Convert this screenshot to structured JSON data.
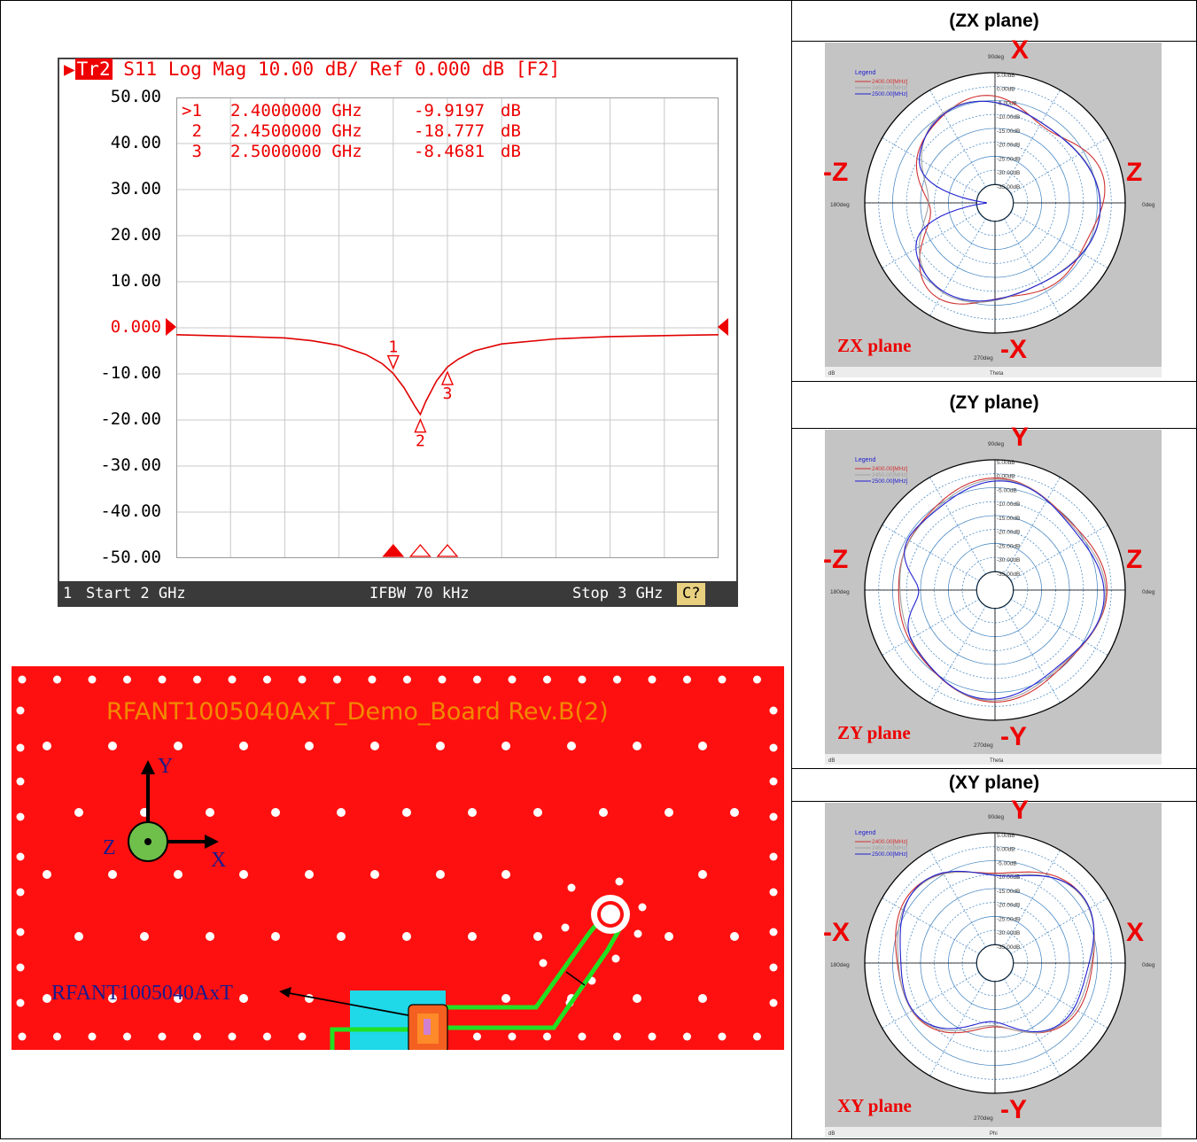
{
  "vna": {
    "trace_tag": "Tr2",
    "header_rest": " S11 Log Mag 10.00 dB/ Ref 0.000 dB [F2]",
    "footer": {
      "channel": "1",
      "start": "Start 2 GHz",
      "ifbw": "IFBW 70 kHz",
      "stop": "Stop 3 GHz",
      "button": "C?"
    },
    "markers": [
      {
        "id": ">1",
        "freq": "2.4000000 GHz",
        "value": "-9.9197",
        "unit": "dB"
      },
      {
        "id": " 2",
        "freq": "2.4500000 GHz",
        "value": "-18.777",
        "unit": "dB"
      },
      {
        "id": " 3",
        "freq": "2.5000000 GHz",
        "value": "-8.4681",
        "unit": "dB"
      }
    ],
    "marker_labels": [
      "1",
      "2",
      "3"
    ]
  },
  "chart_data": [
    {
      "type": "line",
      "ylim": [
        -50,
        50
      ],
      "xlim": [
        2.0,
        3.0
      ],
      "y_ticks": [
        "50.00",
        "40.00",
        "30.00",
        "20.00",
        "10.00",
        "0.000",
        "-10.00",
        "-20.00",
        "-30.00",
        "-40.00",
        "-50.00"
      ],
      "grid": true,
      "series": [
        {
          "color": "#e00000",
          "x": [
            2.0,
            2.1,
            2.2,
            2.25,
            2.3,
            2.35,
            2.38,
            2.4,
            2.42,
            2.44,
            2.45,
            2.46,
            2.48,
            2.5,
            2.52,
            2.55,
            2.6,
            2.7,
            2.8,
            2.9,
            3.0
          ],
          "y": [
            -1.5,
            -1.8,
            -2.2,
            -2.8,
            -3.8,
            -5.8,
            -7.8,
            -9.9,
            -13.0,
            -17.0,
            -18.8,
            -16.0,
            -11.5,
            -8.5,
            -6.8,
            -5.0,
            -3.5,
            -2.4,
            -1.9,
            -1.7,
            -1.5
          ]
        }
      ],
      "markers_x": [
        2.4,
        2.45,
        2.5
      ],
      "markers_y": [
        -9.9197,
        -18.777,
        -8.4681
      ]
    }
  ],
  "pcb": {
    "title": "RFANT1005040AxT_Demo_Board Rev.B(2)",
    "axes": {
      "y": "Y",
      "x": "X",
      "z": "Z"
    },
    "antenna_label": "RFANT1005040AxT"
  },
  "polar_plots": [
    {
      "title": "(ZX plane)",
      "plane": "ZX plane",
      "top": "X",
      "bottom": "-X",
      "left": "-Z",
      "right": "Z",
      "axis_name": "Theta",
      "unit": "dB"
    },
    {
      "title": "(ZY plane)",
      "plane": "ZY plane",
      "top": "Y",
      "bottom": "-Y",
      "left": "-Z",
      "right": "Z",
      "axis_name": "Theta",
      "unit": "dB"
    },
    {
      "title": "(XY plane)",
      "plane": "XY plane",
      "top": "Y",
      "bottom": "-Y",
      "left": "-X",
      "right": "X",
      "axis_name": "Phi",
      "unit": "dB"
    }
  ],
  "polar_common": {
    "legend_title": "Legend",
    "legend": [
      "2400.00[MHz]",
      "2450.00[MHz]",
      "2500.00[MHz]"
    ],
    "legend_colors": [
      "#d03030",
      "#a0a0a0",
      "#2020d0"
    ],
    "rings": [
      "5.00dB",
      "0.00dB",
      "-5.00dB",
      "-10.00dB",
      "-15.00dB",
      "-20.00dB",
      "-25.00dB",
      "-30.00dB",
      "-35.00dB"
    ],
    "deg_top": "90deg",
    "deg_left": "180deg",
    "deg_right": "0deg",
    "deg_bottom": "270deg"
  }
}
